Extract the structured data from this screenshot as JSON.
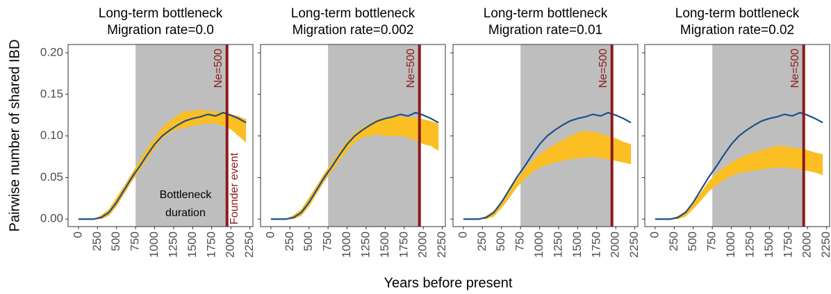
{
  "xlabel": "Years before present",
  "ylabel": "Pairwise number of shared IBD",
  "chart_data": [
    {
      "type": "line",
      "title": "Long-term bottleneck",
      "subtitle": "Migration rate=0.0",
      "x": [
        0,
        100,
        200,
        300,
        400,
        500,
        600,
        700,
        800,
        900,
        1000,
        1100,
        1200,
        1300,
        1400,
        1500,
        1600,
        1700,
        1800,
        1900,
        2000,
        2100,
        2200
      ],
      "line": {
        "color": "#1f4e8c",
        "values": [
          0,
          0,
          0,
          0.002,
          0.008,
          0.02,
          0.035,
          0.05,
          0.063,
          0.077,
          0.09,
          0.1,
          0.107,
          0.113,
          0.118,
          0.121,
          0.123,
          0.126,
          0.124,
          0.128,
          0.125,
          0.121,
          0.116
        ]
      },
      "band": {
        "color": "#fbbf24",
        "lower": [
          0,
          0,
          0,
          0,
          0.004,
          0.015,
          0.03,
          0.045,
          0.058,
          0.072,
          0.085,
          0.097,
          0.104,
          0.108,
          0.11,
          0.112,
          0.114,
          0.115,
          0.115,
          0.112,
          0.108,
          0.1,
          0.092
        ],
        "upper": [
          0,
          0,
          0,
          0.005,
          0.012,
          0.026,
          0.04,
          0.055,
          0.07,
          0.085,
          0.098,
          0.11,
          0.118,
          0.125,
          0.13,
          0.13,
          0.132,
          0.13,
          0.13,
          0.128,
          0.126,
          0.124,
          0.12
        ]
      },
      "shade": {
        "xmin": 750,
        "xmax": 1950,
        "color": "#bebebe"
      },
      "vline": {
        "x": 1950,
        "color": "#8b1a1a",
        "label": "Ne=500"
      },
      "annotations": [
        "Bottleneck",
        "duration",
        "Founder event"
      ],
      "xlim": [
        -136,
        2290
      ],
      "xticks": [
        0,
        250,
        500,
        750,
        1000,
        1250,
        1500,
        1750,
        2000,
        2250
      ],
      "ylim": [
        -0.009,
        0.21
      ],
      "yticks": [
        {
          "value": 0,
          "label": "0.00"
        },
        {
          "value": 0.05,
          "label": "0.05"
        },
        {
          "value": 0.1,
          "label": "0.10"
        },
        {
          "value": 0.15,
          "label": "0.15"
        },
        {
          "value": 0.2,
          "label": "0.20"
        }
      ]
    },
    {
      "type": "line",
      "title": "Long-term bottleneck",
      "subtitle": "Migration rate=0.002",
      "x": [
        0,
        100,
        200,
        300,
        400,
        500,
        600,
        700,
        800,
        900,
        1000,
        1100,
        1200,
        1300,
        1400,
        1500,
        1600,
        1700,
        1800,
        1900,
        2000,
        2100,
        2200
      ],
      "line": {
        "color": "#1f4e8c",
        "values": [
          0,
          0,
          0,
          0.002,
          0.008,
          0.02,
          0.035,
          0.05,
          0.063,
          0.077,
          0.09,
          0.1,
          0.107,
          0.113,
          0.118,
          0.121,
          0.123,
          0.126,
          0.124,
          0.128,
          0.125,
          0.121,
          0.116
        ]
      },
      "band": {
        "color": "#fbbf24",
        "lower": [
          0,
          0,
          0,
          0,
          0.004,
          0.015,
          0.03,
          0.045,
          0.058,
          0.07,
          0.082,
          0.092,
          0.098,
          0.1,
          0.102,
          0.1,
          0.1,
          0.1,
          0.098,
          0.095,
          0.09,
          0.088,
          0.082
        ],
        "upper": [
          0,
          0,
          0,
          0.005,
          0.012,
          0.026,
          0.04,
          0.055,
          0.068,
          0.082,
          0.094,
          0.104,
          0.11,
          0.115,
          0.12,
          0.122,
          0.124,
          0.124,
          0.122,
          0.122,
          0.12,
          0.118,
          0.115
        ]
      },
      "shade": {
        "xmin": 750,
        "xmax": 1950,
        "color": "#bebebe"
      },
      "vline": {
        "x": 1950,
        "color": "#8b1a1a",
        "label": "Ne=500"
      },
      "xlim": [
        -136,
        2290
      ],
      "xticks": [
        0,
        250,
        500,
        750,
        1000,
        1250,
        1500,
        1750,
        2000,
        2250
      ],
      "ylim": [
        -0.009,
        0.21
      ]
    },
    {
      "type": "line",
      "title": "Long-term bottleneck",
      "subtitle": "Migration rate=0.01",
      "x": [
        0,
        100,
        200,
        300,
        400,
        500,
        600,
        700,
        800,
        900,
        1000,
        1100,
        1200,
        1300,
        1400,
        1500,
        1600,
        1700,
        1800,
        1900,
        2000,
        2100,
        2200
      ],
      "line": {
        "color": "#1f4e8c",
        "values": [
          0,
          0,
          0,
          0.002,
          0.008,
          0.02,
          0.035,
          0.05,
          0.063,
          0.077,
          0.09,
          0.1,
          0.107,
          0.113,
          0.118,
          0.121,
          0.123,
          0.126,
          0.124,
          0.128,
          0.125,
          0.121,
          0.116
        ]
      },
      "band": {
        "color": "#fbbf24",
        "lower": [
          0,
          0,
          0,
          0,
          0.003,
          0.013,
          0.025,
          0.038,
          0.048,
          0.056,
          0.062,
          0.065,
          0.068,
          0.07,
          0.072,
          0.073,
          0.074,
          0.075,
          0.073,
          0.072,
          0.07,
          0.068,
          0.066
        ],
        "upper": [
          0,
          0,
          0,
          0.004,
          0.01,
          0.022,
          0.035,
          0.048,
          0.06,
          0.07,
          0.078,
          0.084,
          0.09,
          0.095,
          0.1,
          0.104,
          0.106,
          0.105,
          0.103,
          0.1,
          0.097,
          0.093,
          0.09
        ]
      },
      "shade": {
        "xmin": 750,
        "xmax": 1950,
        "color": "#bebebe"
      },
      "vline": {
        "x": 1950,
        "color": "#8b1a1a",
        "label": "Ne=500"
      },
      "xlim": [
        -136,
        2290
      ],
      "xticks": [
        0,
        250,
        500,
        750,
        1000,
        1250,
        1500,
        1750,
        2000,
        2250
      ],
      "ylim": [
        -0.009,
        0.21
      ]
    },
    {
      "type": "line",
      "title": "Long-term bottleneck",
      "subtitle": "Migration rate=0.02",
      "x": [
        0,
        100,
        200,
        300,
        400,
        500,
        600,
        700,
        800,
        900,
        1000,
        1100,
        1200,
        1300,
        1400,
        1500,
        1600,
        1700,
        1800,
        1900,
        2000,
        2100,
        2200
      ],
      "line": {
        "color": "#1f4e8c",
        "values": [
          0,
          0,
          0,
          0.002,
          0.008,
          0.02,
          0.035,
          0.05,
          0.063,
          0.077,
          0.09,
          0.1,
          0.107,
          0.113,
          0.118,
          0.121,
          0.123,
          0.126,
          0.124,
          0.128,
          0.125,
          0.121,
          0.116
        ]
      },
      "band": {
        "color": "#fbbf24",
        "lower": [
          0,
          0,
          0,
          0,
          0.003,
          0.012,
          0.022,
          0.033,
          0.04,
          0.047,
          0.052,
          0.055,
          0.057,
          0.058,
          0.06,
          0.061,
          0.062,
          0.062,
          0.061,
          0.06,
          0.058,
          0.056,
          0.053
        ],
        "upper": [
          0,
          0,
          0,
          0.004,
          0.01,
          0.02,
          0.032,
          0.045,
          0.055,
          0.062,
          0.068,
          0.073,
          0.077,
          0.08,
          0.083,
          0.086,
          0.088,
          0.088,
          0.086,
          0.085,
          0.083,
          0.08,
          0.078
        ]
      },
      "shade": {
        "xmin": 750,
        "xmax": 1950,
        "color": "#bebebe"
      },
      "vline": {
        "x": 1950,
        "color": "#8b1a1a",
        "label": "Ne=500"
      },
      "xlim": [
        -136,
        2290
      ],
      "xticks": [
        0,
        250,
        500,
        750,
        1000,
        1250,
        1500,
        1750,
        2000,
        2250
      ],
      "ylim": [
        -0.009,
        0.21
      ]
    }
  ]
}
